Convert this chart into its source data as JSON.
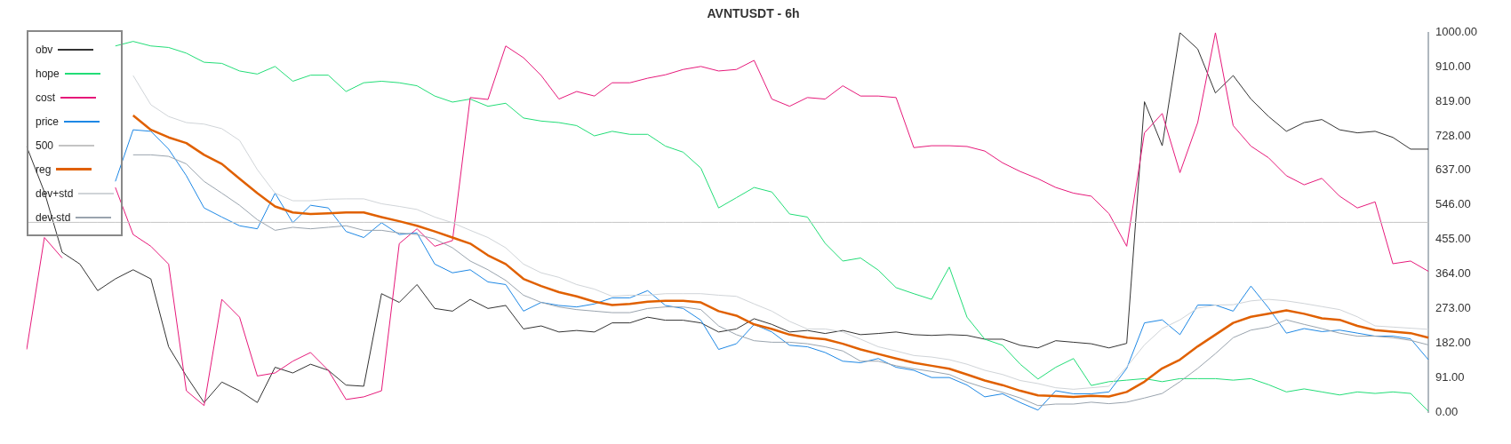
{
  "chart_data": {
    "type": "line",
    "title": "AVNTUSDT - 6h",
    "categories": [
      null,
      null,
      null,
      null,
      null,
      null,
      null,
      null,
      null,
      null,
      null,
      null,
      null,
      null,
      null,
      null,
      null,
      null,
      null,
      null,
      null,
      null,
      null,
      null,
      null,
      null,
      null,
      null,
      null,
      null,
      null,
      null,
      null,
      null,
      null,
      null,
      null,
      null,
      null,
      null,
      null,
      null,
      null,
      null,
      null,
      null,
      null,
      null,
      null,
      null,
      null,
      null,
      null,
      null,
      null,
      null,
      null,
      null,
      null,
      null,
      null,
      null,
      null,
      null,
      null,
      null,
      null,
      null,
      null,
      null,
      null,
      null,
      null,
      null,
      null,
      null,
      null,
      null,
      null,
      null
    ],
    "series": [
      {
        "name": "obv",
        "color": "#333333",
        "values": [
          700,
          580,
          421,
          390,
          320,
          351,
          375,
          351,
          172,
          95,
          25,
          79,
          56,
          25,
          118,
          103,
          126,
          110,
          71,
          68,
          312,
          289,
          336,
          273,
          266,
          297,
          273,
          281,
          219,
          227,
          211,
          215,
          211,
          235,
          235,
          250,
          242,
          242,
          235,
          211,
          219,
          246,
          231,
          211,
          215,
          207,
          215,
          204,
          207,
          211,
          204,
          202,
          204,
          202,
          192,
          192,
          176,
          169,
          188,
          184,
          180,
          169,
          181,
          818,
          702,
          1000,
          957,
          841,
          887,
          825,
          779,
          740,
          763,
          771,
          744,
          736,
          740,
          724,
          693,
          693
        ]
      },
      {
        "name": "hope",
        "color": "#22dd77",
        "values": [
          null,
          null,
          null,
          null,
          null,
          965,
          977,
          965,
          961,
          946,
          922,
          919,
          899,
          891,
          911,
          872,
          888,
          888,
          845,
          868,
          872,
          868,
          860,
          833,
          817,
          825,
          806,
          814,
          775,
          767,
          763,
          755,
          728,
          740,
          732,
          732,
          701,
          685,
          643,
          538,
          565,
          592,
          580,
          522,
          514,
          445,
          398,
          406,
          374,
          328,
          312,
          297,
          382,
          250,
          192,
          176,
          126,
          87,
          118,
          141,
          70,
          80,
          84,
          88,
          80,
          88,
          88,
          88,
          84,
          88,
          72,
          53,
          61,
          53,
          45,
          53,
          49,
          53,
          49,
          2
        ]
      },
      {
        "name": "cost",
        "color": "#e6197a",
        "values": [
          165,
          460,
          406,
          null,
          null,
          592,
          468,
          437,
          390,
          56,
          17,
          297,
          250,
          95,
          103,
          134,
          157,
          110,
          33,
          40,
          56,
          444,
          483,
          437,
          452,
          829,
          824,
          965,
          934,
          887,
          825,
          845,
          833,
          868,
          868,
          880,
          889,
          903,
          911,
          899,
          903,
          927,
          825,
          806,
          829,
          825,
          860,
          833,
          833,
          829,
          697,
          702,
          702,
          700,
          688,
          657,
          634,
          615,
          592,
          577,
          569,
          523,
          437,
          736,
          787,
          631,
          763,
          1000,
          755,
          701,
          670,
          623,
          599,
          616,
          569,
          538,
          554,
          391,
          398,
          371
        ]
      },
      {
        "name": "price",
        "color": "#1e88e5",
        "values": [
          null,
          null,
          null,
          null,
          null,
          608,
          744,
          740,
          693,
          623,
          538,
          514,
          491,
          483,
          577,
          499,
          545,
          538,
          476,
          460,
          499,
          468,
          472,
          390,
          367,
          375,
          343,
          336,
          266,
          289,
          281,
          277,
          285,
          301,
          301,
          320,
          281,
          273,
          242,
          165,
          180,
          231,
          211,
          176,
          172,
          157,
          134,
          130,
          141,
          118,
          110,
          91,
          91,
          71,
          40,
          48,
          25,
          5,
          56,
          48,
          48,
          53,
          115,
          235,
          243,
          204,
          282,
          282,
          266,
          332,
          274,
          208,
          220,
          212,
          216,
          208,
          200,
          200,
          193,
          138
        ]
      },
      {
        "name": "500",
        "color": "#c4c4c4",
        "values": [
          500,
          500,
          500,
          500,
          500,
          500,
          500,
          500,
          500,
          500,
          500,
          500,
          500,
          500,
          500,
          500,
          500,
          500,
          500,
          500,
          500,
          500,
          500,
          500,
          500,
          500,
          500,
          500,
          500,
          500,
          500,
          500,
          500,
          500,
          500,
          500,
          500,
          500,
          500,
          500,
          500,
          500,
          500,
          500,
          500,
          500,
          500,
          500,
          500,
          500,
          500,
          500,
          500,
          500,
          500,
          500,
          500,
          500,
          500,
          500,
          500,
          500,
          500,
          500,
          500,
          500,
          500,
          500,
          500,
          500,
          500,
          500,
          500,
          500,
          500,
          500,
          500,
          500,
          500,
          500
        ]
      },
      {
        "name": "reg",
        "color": "#e06000",
        "values": [
          null,
          null,
          null,
          null,
          null,
          null,
          782,
          744,
          724,
          709,
          678,
          654,
          615,
          577,
          542,
          526,
          522,
          524,
          526,
          526,
          514,
          503,
          491,
          476,
          460,
          444,
          413,
          390,
          351,
          332,
          316,
          305,
          291,
          282,
          285,
          291,
          293,
          293,
          289,
          266,
          254,
          231,
          219,
          204,
          196,
          192,
          180,
          165,
          153,
          141,
          130,
          122,
          114,
          99,
          83,
          71,
          56,
          44,
          42,
          40,
          43,
          41,
          53,
          80,
          115,
          138,
          173,
          204,
          235,
          251,
          259,
          268,
          259,
          247,
          243,
          227,
          216,
          212,
          208,
          196
        ]
      },
      {
        "name": "dev+std",
        "color": "#d0d4d8",
        "values": [
          null,
          null,
          null,
          null,
          null,
          null,
          887,
          810,
          779,
          763,
          759,
          747,
          716,
          639,
          577,
          557,
          557,
          561,
          562,
          562,
          549,
          542,
          534,
          514,
          499,
          479,
          460,
          433,
          390,
          367,
          355,
          336,
          324,
          305,
          308,
          308,
          312,
          312,
          312,
          308,
          305,
          285,
          266,
          239,
          219,
          219,
          211,
          192,
          172,
          161,
          149,
          145,
          138,
          126,
          110,
          99,
          83,
          75,
          64,
          60,
          64,
          68,
          119,
          177,
          220,
          243,
          274,
          282,
          283,
          293,
          297,
          293,
          286,
          278,
          270,
          251,
          227,
          224,
          221,
          218
        ]
      },
      {
        "name": "dev-std",
        "color": "#9aa4ae",
        "values": [
          null,
          null,
          null,
          null,
          null,
          null,
          678,
          678,
          674,
          654,
          608,
          577,
          545,
          507,
          479,
          487,
          483,
          487,
          491,
          479,
          479,
          472,
          468,
          456,
          433,
          398,
          375,
          347,
          308,
          289,
          277,
          270,
          266,
          262,
          262,
          273,
          277,
          277,
          270,
          227,
          204,
          188,
          184,
          184,
          180,
          172,
          161,
          134,
          134,
          122,
          114,
          107,
          99,
          79,
          64,
          52,
          37,
          17,
          21,
          21,
          26,
          22,
          26,
          37,
          49,
          80,
          115,
          154,
          196,
          216,
          224,
          243,
          231,
          220,
          208,
          200,
          200,
          196,
          189,
          177
        ]
      }
    ],
    "ylim": [
      0,
      1000
    ],
    "yticks": [
      {
        "value": 0,
        "label": "0.00"
      },
      {
        "value": 91,
        "label": "91.00"
      },
      {
        "value": 182,
        "label": "182.00"
      },
      {
        "value": 273,
        "label": "273.00"
      },
      {
        "value": 364,
        "label": "364.00"
      },
      {
        "value": 455,
        "label": "455.00"
      },
      {
        "value": 546,
        "label": "546.00"
      },
      {
        "value": 637,
        "label": "637.00"
      },
      {
        "value": 728,
        "label": "728.00"
      },
      {
        "value": 819,
        "label": "819.00"
      },
      {
        "value": 910,
        "label": "910.00"
      },
      {
        "value": 1000,
        "label": "1000.00"
      }
    ],
    "tick_labels": "y",
    "legend": "top left",
    "marker": "none",
    "line_style": "solid"
  }
}
